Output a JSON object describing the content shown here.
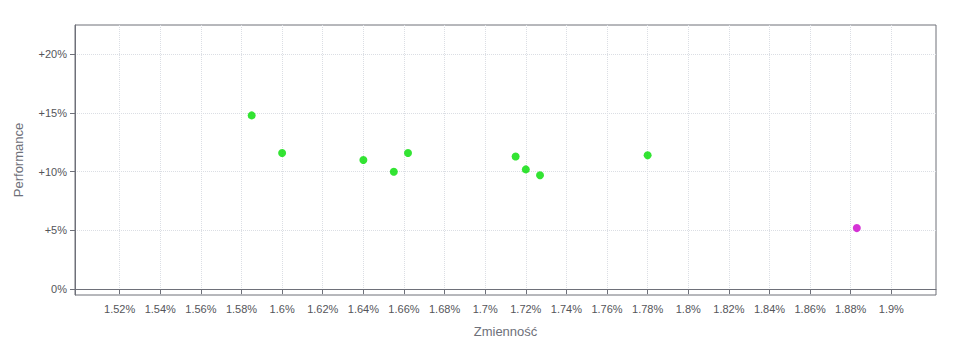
{
  "chart_data": {
    "type": "scatter",
    "xlabel": "Zmienność",
    "ylabel": "Performance",
    "xlim": [
      0.01498,
      0.01922
    ],
    "ylim": [
      -0.005,
      0.225
    ],
    "xticks": [
      {
        "value": 0.0152,
        "label": "1.52%"
      },
      {
        "value": 0.0154,
        "label": "1.54%"
      },
      {
        "value": 0.0156,
        "label": "1.56%"
      },
      {
        "value": 0.0158,
        "label": "1.58%"
      },
      {
        "value": 0.016,
        "label": "1.6%"
      },
      {
        "value": 0.0162,
        "label": "1.62%"
      },
      {
        "value": 0.0164,
        "label": "1.64%"
      },
      {
        "value": 0.0166,
        "label": "1.66%"
      },
      {
        "value": 0.0168,
        "label": "1.68%"
      },
      {
        "value": 0.017,
        "label": "1.7%"
      },
      {
        "value": 0.0172,
        "label": "1.72%"
      },
      {
        "value": 0.0174,
        "label": "1.74%"
      },
      {
        "value": 0.0176,
        "label": "1.76%"
      },
      {
        "value": 0.0178,
        "label": "1.78%"
      },
      {
        "value": 0.018,
        "label": "1.8%"
      },
      {
        "value": 0.0182,
        "label": "1.82%"
      },
      {
        "value": 0.0184,
        "label": "1.84%"
      },
      {
        "value": 0.0186,
        "label": "1.86%"
      },
      {
        "value": 0.0188,
        "label": "1.88%"
      },
      {
        "value": 0.019,
        "label": "1.9%"
      }
    ],
    "yticks": [
      {
        "value": 0.0,
        "label": "0%"
      },
      {
        "value": 0.05,
        "label": "+5%"
      },
      {
        "value": 0.1,
        "label": "+10%"
      },
      {
        "value": 0.15,
        "label": "+15%"
      },
      {
        "value": 0.2,
        "label": "+20%"
      }
    ],
    "grid": true,
    "series": [
      {
        "color": "#00dd00",
        "x": [
          0.01585,
          0.016,
          0.0164,
          0.01655,
          0.01662,
          0.01715,
          0.0172,
          0.01727,
          0.0178
        ],
        "values": [
          0.148,
          0.116,
          0.11,
          0.1,
          0.116,
          0.113,
          0.102,
          0.097,
          0.114
        ]
      },
      {
        "color": "#cc00cc",
        "x": [
          0.01883
        ],
        "values": [
          0.052
        ]
      }
    ]
  }
}
